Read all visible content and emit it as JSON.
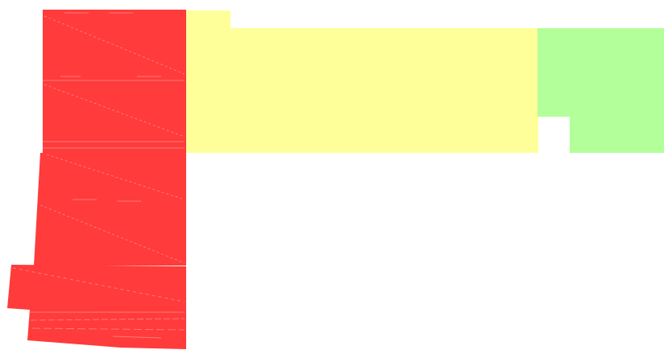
{
  "colors": {
    "background": "#ffffff",
    "red_region": "#ff3b3b",
    "red_streak": "#ff7a7a",
    "yellow_region": "#ffff99",
    "green_region": "#b3ff99"
  }
}
